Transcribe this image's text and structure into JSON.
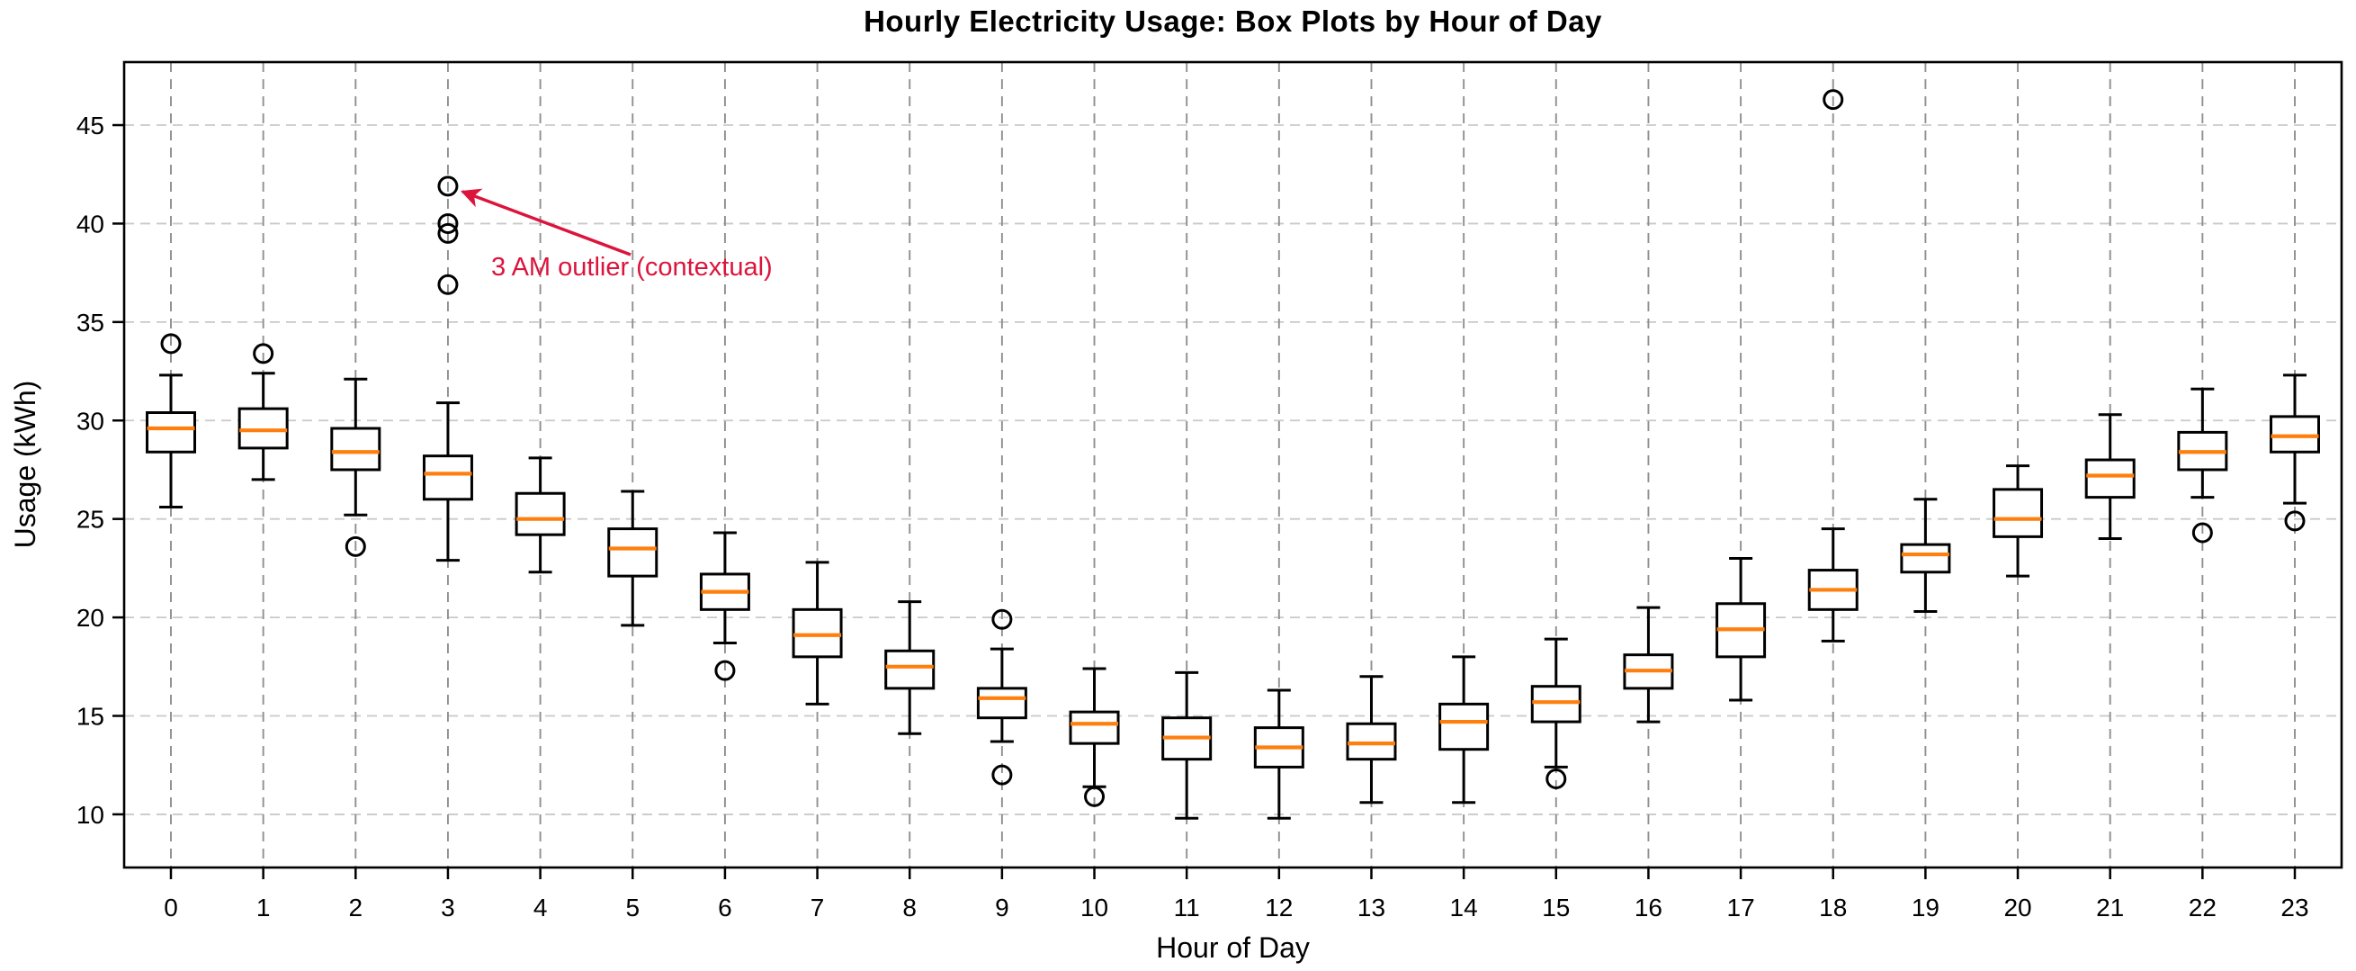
{
  "figure": {
    "title": "Hourly Electricity Usage: Box Plots by Hour of Day",
    "background": "#ffffff"
  },
  "annotation": {
    "text": "3 AM outlier (contextual)",
    "color": "#dc143c",
    "target_hour": 3,
    "target_value": 41.9
  },
  "chart_data": {
    "type": "boxplot",
    "title": "Hourly Electricity Usage: Box Plots by Hour of Day",
    "xlabel": "Hour of Day",
    "ylabel": "Usage (kWh)",
    "categories": [
      "0",
      "1",
      "2",
      "3",
      "4",
      "5",
      "6",
      "7",
      "8",
      "9",
      "10",
      "11",
      "12",
      "13",
      "14",
      "15",
      "16",
      "17",
      "18",
      "19",
      "20",
      "21",
      "22",
      "23"
    ],
    "y_ticks": [
      10,
      15,
      20,
      25,
      30,
      35,
      40,
      45
    ],
    "ylim": [
      7.3,
      48.2
    ],
    "grid": "dashed gridlines on both axes",
    "legend": "none",
    "colors": {
      "box_line": "#000000",
      "box_fill": "#ffffff",
      "median": "#ff7f0e",
      "flier": "#000000",
      "grid_horizontal": "#c9c9c9",
      "grid_vertical": "#8f8f8f",
      "annotation": "#dc143c"
    },
    "boxes": [
      {
        "hour": "0",
        "whislo": 25.6,
        "q1": 28.4,
        "med": 29.6,
        "q3": 30.4,
        "whishi": 32.3,
        "fliers": [
          33.9
        ]
      },
      {
        "hour": "1",
        "whislo": 27.0,
        "q1": 28.6,
        "med": 29.5,
        "q3": 30.6,
        "whishi": 32.4,
        "fliers": [
          33.4
        ]
      },
      {
        "hour": "2",
        "whislo": 25.2,
        "q1": 27.5,
        "med": 28.4,
        "q3": 29.6,
        "whishi": 32.1,
        "fliers": [
          23.6
        ]
      },
      {
        "hour": "3",
        "whislo": 22.9,
        "q1": 26.0,
        "med": 27.3,
        "q3": 28.2,
        "whishi": 30.9,
        "fliers": [
          36.9,
          39.5,
          40.0,
          41.9
        ]
      },
      {
        "hour": "4",
        "whislo": 22.3,
        "q1": 24.2,
        "med": 25.0,
        "q3": 26.3,
        "whishi": 28.1,
        "fliers": []
      },
      {
        "hour": "5",
        "whislo": 19.6,
        "q1": 22.1,
        "med": 23.5,
        "q3": 24.5,
        "whishi": 26.4,
        "fliers": []
      },
      {
        "hour": "6",
        "whislo": 18.7,
        "q1": 20.4,
        "med": 21.3,
        "q3": 22.2,
        "whishi": 24.3,
        "fliers": [
          17.3
        ]
      },
      {
        "hour": "7",
        "whislo": 15.6,
        "q1": 18.0,
        "med": 19.1,
        "q3": 20.4,
        "whishi": 22.8,
        "fliers": []
      },
      {
        "hour": "8",
        "whislo": 14.1,
        "q1": 16.4,
        "med": 17.5,
        "q3": 18.3,
        "whishi": 20.8,
        "fliers": []
      },
      {
        "hour": "9",
        "whislo": 13.7,
        "q1": 14.9,
        "med": 15.9,
        "q3": 16.4,
        "whishi": 18.4,
        "fliers": [
          19.9,
          12.0
        ]
      },
      {
        "hour": "10",
        "whislo": 11.4,
        "q1": 13.6,
        "med": 14.6,
        "q3": 15.2,
        "whishi": 17.4,
        "fliers": [
          10.9
        ]
      },
      {
        "hour": "11",
        "whislo": 9.8,
        "q1": 12.8,
        "med": 13.9,
        "q3": 14.9,
        "whishi": 17.2,
        "fliers": []
      },
      {
        "hour": "12",
        "whislo": 9.8,
        "q1": 12.4,
        "med": 13.4,
        "q3": 14.4,
        "whishi": 16.3,
        "fliers": []
      },
      {
        "hour": "13",
        "whislo": 10.6,
        "q1": 12.8,
        "med": 13.6,
        "q3": 14.6,
        "whishi": 17.0,
        "fliers": []
      },
      {
        "hour": "14",
        "whislo": 10.6,
        "q1": 13.3,
        "med": 14.7,
        "q3": 15.6,
        "whishi": 18.0,
        "fliers": []
      },
      {
        "hour": "15",
        "whislo": 12.4,
        "q1": 14.7,
        "med": 15.7,
        "q3": 16.5,
        "whishi": 18.9,
        "fliers": [
          11.8
        ]
      },
      {
        "hour": "16",
        "whislo": 14.7,
        "q1": 16.4,
        "med": 17.3,
        "q3": 18.1,
        "whishi": 20.5,
        "fliers": []
      },
      {
        "hour": "17",
        "whislo": 15.8,
        "q1": 18.0,
        "med": 19.4,
        "q3": 20.7,
        "whishi": 23.0,
        "fliers": []
      },
      {
        "hour": "18",
        "whislo": 18.8,
        "q1": 20.4,
        "med": 21.4,
        "q3": 22.4,
        "whishi": 24.5,
        "fliers": [
          46.3
        ]
      },
      {
        "hour": "19",
        "whislo": 20.3,
        "q1": 22.3,
        "med": 23.2,
        "q3": 23.7,
        "whishi": 26.0,
        "fliers": []
      },
      {
        "hour": "20",
        "whislo": 22.1,
        "q1": 24.1,
        "med": 25.0,
        "q3": 26.5,
        "whishi": 27.7,
        "fliers": []
      },
      {
        "hour": "21",
        "whislo": 24.0,
        "q1": 26.1,
        "med": 27.2,
        "q3": 28.0,
        "whishi": 30.3,
        "fliers": []
      },
      {
        "hour": "22",
        "whislo": 26.1,
        "q1": 27.5,
        "med": 28.4,
        "q3": 29.4,
        "whishi": 31.6,
        "fliers": [
          24.3
        ]
      },
      {
        "hour": "23",
        "whislo": 25.8,
        "q1": 28.4,
        "med": 29.2,
        "q3": 30.2,
        "whishi": 32.3,
        "fliers": [
          24.9
        ]
      }
    ]
  }
}
